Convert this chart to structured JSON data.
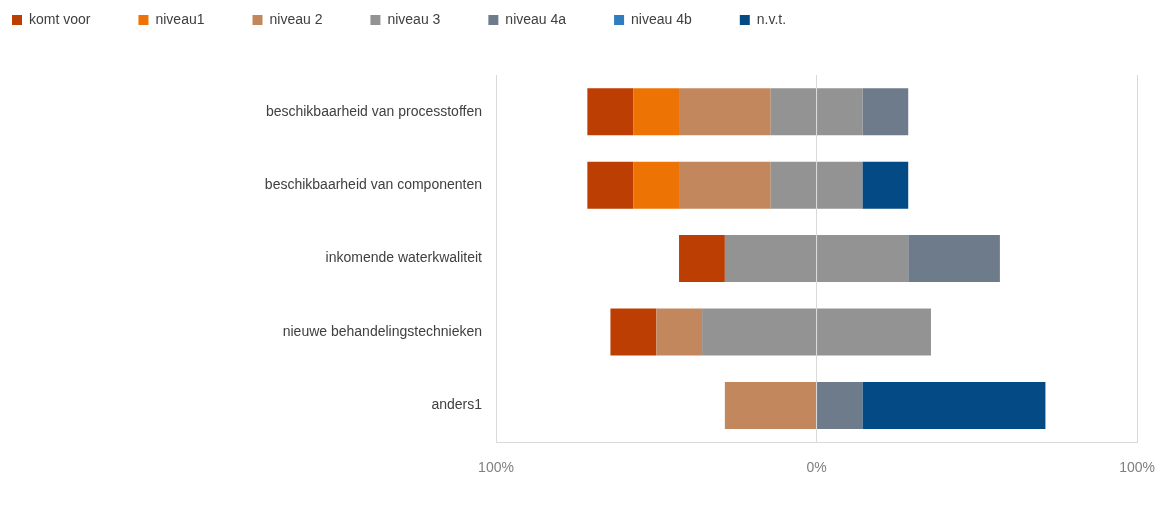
{
  "chart_data": {
    "type": "bar",
    "orientation": "horizontal",
    "stacked": true,
    "categories": [
      "beschikbaarheid van processtoffen",
      "beschikbaarheid van componenten",
      "inkomende waterkwaliteit",
      "nieuwe behandelingstechnieken",
      "anders1"
    ],
    "series": [
      {
        "color": "#939393",
        "values": [
          -14.3,
          -14.3,
          -28.6,
          -35.7,
          0
        ]
      },
      {
        "name": "niveau 2",
        "color": "#c2875c",
        "values": [
          -28.6,
          -28.6,
          0,
          -14.3,
          -28.6
        ]
      },
      {
        "name": "niveau1",
        "color": "#ec7304",
        "values": [
          -14.3,
          -14.3,
          0,
          0,
          0
        ]
      },
      {
        "name": "komt voor",
        "color": "#bd3e03",
        "values": [
          -14.3,
          -14.3,
          -14.3,
          -14.3,
          0
        ]
      },
      {
        "name": "niveau 3",
        "color": "#939393",
        "values": [
          14.3,
          14.3,
          28.6,
          35.7,
          0
        ]
      },
      {
        "name": "niveau 4a",
        "color": "#6e7b8b",
        "values": [
          14.3,
          0,
          28.6,
          0,
          14.3
        ]
      },
      {
        "name": "niveau 4b",
        "color": "#2f7cbf",
        "values": [
          0,
          0,
          0,
          0,
          0
        ]
      },
      {
        "name": "n.v.t.",
        "color": "#044a84",
        "values": [
          0,
          14.3,
          0,
          0,
          57.1
        ]
      }
    ],
    "xlim": [
      -100,
      100
    ],
    "xticks": [
      {
        "value": -100,
        "label": "100%"
      },
      {
        "value": 0,
        "label": "0%"
      },
      {
        "value": 100,
        "label": "100%"
      }
    ],
    "grid": "x",
    "legend": "top left"
  }
}
